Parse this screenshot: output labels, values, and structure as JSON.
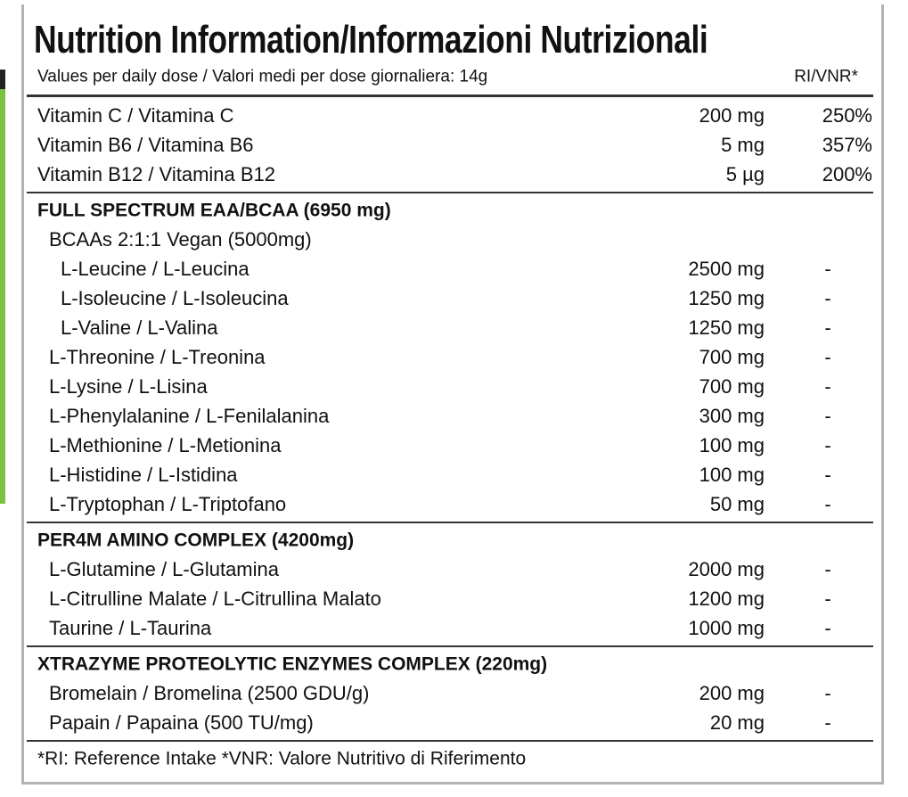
{
  "header": {
    "title": "Nutrition Information/Informazioni Nutrizionali",
    "subtitle": "Values per daily dose / Valori medi per dose giornaliera: 14g",
    "ri_label": "RI/VNR*"
  },
  "sections": [
    {
      "rows": [
        {
          "name": "Vitamin C / Vitamina C",
          "amount": "200 mg",
          "ri": "250%"
        },
        {
          "name": "Vitamin B6 / Vitamina B6",
          "amount": "5 mg",
          "ri": "357%"
        },
        {
          "name": "Vitamin B12 / Vitamina B12",
          "amount": "5 µg",
          "ri": "200%"
        }
      ]
    },
    {
      "heading": "FULL SPECTRUM EAA/BCAA (6950 mg)",
      "rows": [
        {
          "name": "BCAAs 2:1:1 Vegan (5000mg)",
          "rows": [
            {
              "name": "L-Leucine / L-Leucina",
              "amount": "2500 mg",
              "ri": "-"
            },
            {
              "name": "L-Isoleucine / L-Isoleucina",
              "amount": "1250 mg",
              "ri": "-"
            },
            {
              "name": "L-Valine / L-Valina",
              "amount": "1250 mg",
              "ri": "-"
            }
          ]
        },
        {
          "name": "L-Threonine / L-Treonina",
          "amount": "700 mg",
          "ri": "-"
        },
        {
          "name": "L-Lysine / L-Lisina",
          "amount": "700 mg",
          "ri": "-"
        },
        {
          "name": "L-Phenylalanine / L-Fenilalanina",
          "amount": "300 mg",
          "ri": "-"
        },
        {
          "name": "L-Methionine / L-Metionina",
          "amount": "100 mg",
          "ri": "-"
        },
        {
          "name": "L-Histidine / L-Istidina",
          "amount": "100 mg",
          "ri": "-"
        },
        {
          "name": "L-Tryptophan / L-Triptofano",
          "amount": "50 mg",
          "ri": "-"
        }
      ]
    },
    {
      "heading": "PER4M AMINO COMPLEX (4200mg)",
      "rows": [
        {
          "name": "L-Glutamine / L-Glutamina",
          "amount": "2000 mg",
          "ri": "-"
        },
        {
          "name": "L-Citrulline Malate / L-Citrullina Malato",
          "amount": "1200 mg",
          "ri": "-"
        },
        {
          "name": "Taurine / L-Taurina",
          "amount": "1000 mg",
          "ri": "-"
        }
      ]
    },
    {
      "heading": "XTRAZYME PROTEOLYTIC ENZYMES COMPLEX (220mg)",
      "rows": [
        {
          "name": "Bromelain / Bromelina (2500 GDU/g)",
          "amount": "200 mg",
          "ri": "-"
        },
        {
          "name": "Papain / Papaina (500 TU/mg)",
          "amount": "20 mg",
          "ri": "-"
        }
      ]
    }
  ],
  "footnote": "*RI: Reference Intake   *VNR: Valore Nutritivo di Riferimento"
}
